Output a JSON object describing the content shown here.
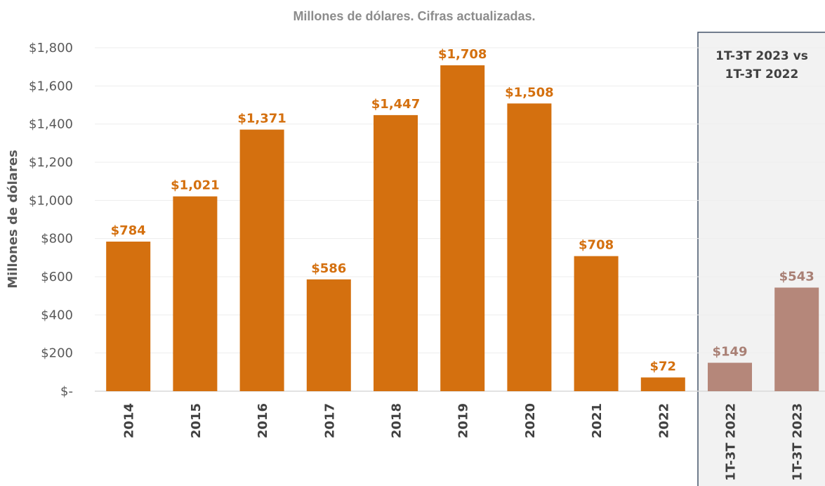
{
  "chart_data": {
    "type": "bar",
    "title": "Millones de dólares. Cifras actualizadas.",
    "ylabel": "Millones de dólares",
    "xlabel": "",
    "ylim": [
      0,
      1800
    ],
    "y_ticks": [
      {
        "value": 0,
        "label": "$-"
      },
      {
        "value": 200,
        "label": "$200"
      },
      {
        "value": 400,
        "label": "$400"
      },
      {
        "value": 600,
        "label": "$600"
      },
      {
        "value": 800,
        "label": "$800"
      },
      {
        "value": 1000,
        "label": "$1,000"
      },
      {
        "value": 1200,
        "label": "$1,200"
      },
      {
        "value": 1400,
        "label": "$1,400"
      },
      {
        "value": 1600,
        "label": "$1,600"
      },
      {
        "value": 1800,
        "label": "$1,800"
      }
    ],
    "grid": true,
    "legend": "none",
    "categories": [
      "2014",
      "2015",
      "2016",
      "2017",
      "2018",
      "2019",
      "2020",
      "2021",
      "2022",
      "1T-3T 2022",
      "1T-3T 2023"
    ],
    "values": [
      784,
      1021,
      1371,
      586,
      1447,
      1708,
      1508,
      708,
      72,
      149,
      543
    ],
    "value_labels": [
      "$784",
      "$1,021",
      "$1,371",
      "$586",
      "$1,447",
      "$1,708",
      "$1,508",
      "$708",
      "$72",
      "$149",
      "$543"
    ],
    "group": [
      "annual",
      "annual",
      "annual",
      "annual",
      "annual",
      "annual",
      "annual",
      "annual",
      "annual",
      "comparison",
      "comparison"
    ],
    "colors": {
      "annual": "#D4700F",
      "comparison": "#B5877A",
      "annual_label": "#D4700F",
      "comparison_label": "#A98075",
      "grid": "#EDEDED",
      "axis": "#D9D9D9",
      "panel_bg": "#F2F2F2",
      "panel_border": "#44546A"
    },
    "comparison_panel": {
      "title_lines": [
        "1T-3T 2023 vs",
        "1T-3T 2022"
      ]
    }
  }
}
